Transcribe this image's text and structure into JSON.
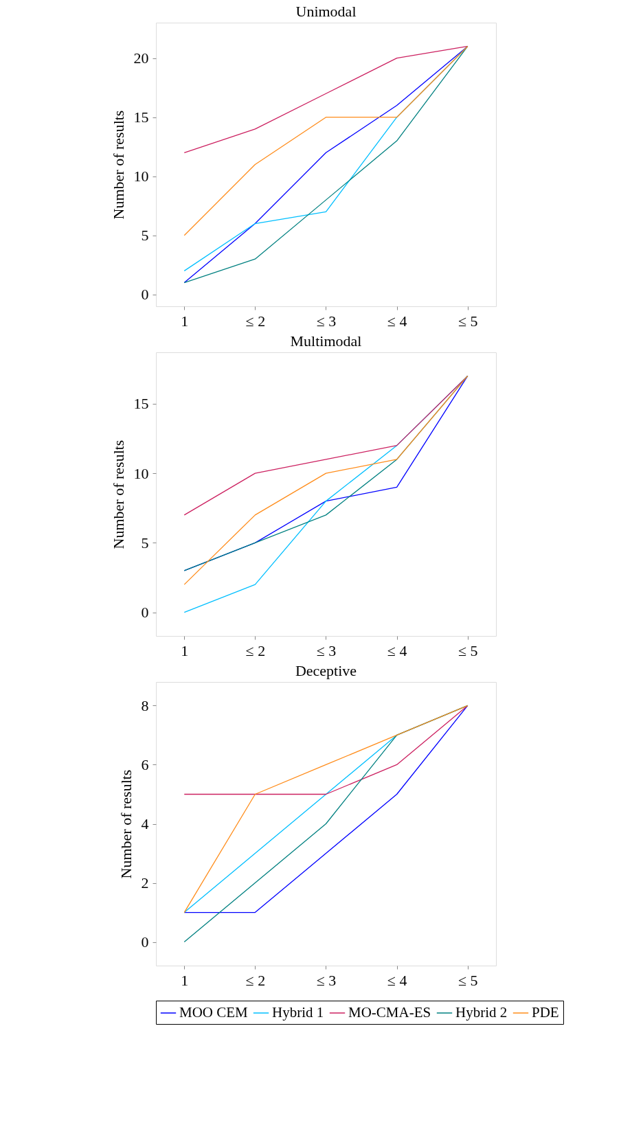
{
  "chart_data": [
    {
      "type": "line",
      "title": "Unimodal",
      "ylabel": "Number of results",
      "categories": [
        "1",
        "≤ 2",
        "≤ 3",
        "≤ 4",
        "≤ 5"
      ],
      "ylim": [
        -1,
        23
      ],
      "yticks": [
        0,
        5,
        10,
        15,
        20
      ],
      "grid": false,
      "legend": "bottom",
      "marker": "none",
      "series": [
        {
          "name": "MOO CEM",
          "color": "#0000ff",
          "values": [
            1,
            6,
            12,
            16,
            21
          ]
        },
        {
          "name": "Hybrid 1",
          "color": "#00bfff",
          "values": [
            2,
            6,
            7,
            15,
            21
          ]
        },
        {
          "name": "MO-CMA-ES",
          "color": "#cc2060",
          "values": [
            12,
            14,
            17,
            20,
            21
          ]
        },
        {
          "name": "Hybrid 2",
          "color": "#008080",
          "values": [
            1,
            3,
            8,
            13,
            21
          ]
        },
        {
          "name": "PDE",
          "color": "#ff8c1a",
          "values": [
            5,
            11,
            15,
            15,
            21
          ]
        }
      ]
    },
    {
      "type": "line",
      "title": "Multimodal",
      "ylabel": "Number of results",
      "categories": [
        "1",
        "≤ 2",
        "≤ 3",
        "≤ 4",
        "≤ 5"
      ],
      "ylim": [
        -1.7,
        18.7
      ],
      "yticks": [
        0,
        5,
        10,
        15
      ],
      "grid": false,
      "legend": "bottom",
      "marker": "none",
      "series": [
        {
          "name": "MOO CEM",
          "color": "#0000ff",
          "values": [
            3,
            5,
            8,
            9,
            17
          ]
        },
        {
          "name": "Hybrid 1",
          "color": "#00bfff",
          "values": [
            0,
            2,
            8,
            12,
            17
          ]
        },
        {
          "name": "MO-CMA-ES",
          "color": "#cc2060",
          "values": [
            7,
            10,
            11,
            12,
            17
          ]
        },
        {
          "name": "Hybrid 2",
          "color": "#008080",
          "values": [
            3,
            5,
            7,
            11,
            17
          ]
        },
        {
          "name": "PDE",
          "color": "#ff8c1a",
          "values": [
            2,
            7,
            10,
            11,
            17
          ]
        }
      ]
    },
    {
      "type": "line",
      "title": "Deceptive",
      "ylabel": "Number of results",
      "categories": [
        "1",
        "≤ 2",
        "≤ 3",
        "≤ 4",
        "≤ 5"
      ],
      "ylim": [
        -0.8,
        8.8
      ],
      "yticks": [
        0,
        2,
        4,
        6,
        8
      ],
      "grid": false,
      "legend": "bottom",
      "marker": "none",
      "series": [
        {
          "name": "MOO CEM",
          "color": "#0000ff",
          "values": [
            1,
            1,
            3,
            5,
            8
          ]
        },
        {
          "name": "Hybrid 1",
          "color": "#00bfff",
          "values": [
            1,
            3,
            5,
            7,
            8
          ]
        },
        {
          "name": "MO-CMA-ES",
          "color": "#cc2060",
          "values": [
            5,
            5,
            5,
            6,
            8
          ]
        },
        {
          "name": "Hybrid 2",
          "color": "#008080",
          "values": [
            0,
            2,
            4,
            7,
            8
          ]
        },
        {
          "name": "PDE",
          "color": "#ff8c1a",
          "values": [
            1,
            5,
            6,
            7,
            8
          ]
        }
      ]
    }
  ]
}
